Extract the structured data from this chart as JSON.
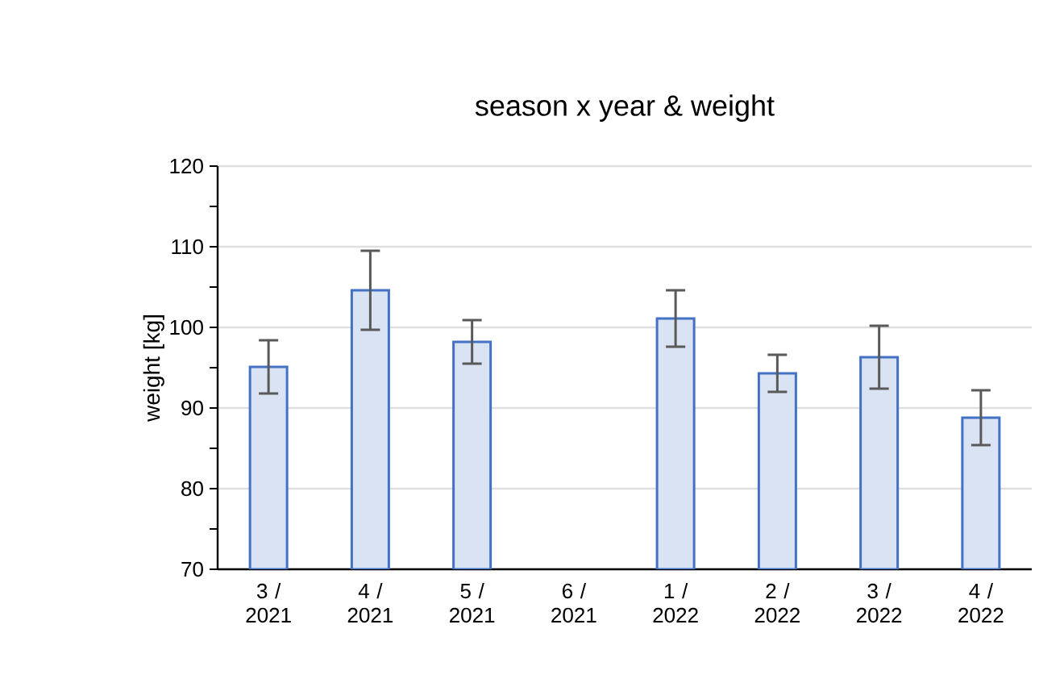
{
  "chart_data": {
    "type": "bar",
    "title": "season x year & weight",
    "ylabel": "weight [kg]",
    "categories": [
      "3 / 2021",
      "4 / 2021",
      "5 / 2021",
      "6 / 2021",
      "1 / 2022",
      "2 / 2022",
      "3 / 2022",
      "4 / 2022"
    ],
    "values": [
      95.1,
      104.6,
      98.2,
      null,
      101.1,
      94.3,
      96.3,
      88.8
    ],
    "errors": [
      3.3,
      4.9,
      2.7,
      null,
      3.5,
      2.3,
      3.9,
      3.4
    ],
    "color": "#dae3f3",
    "ylim": [
      70,
      120
    ],
    "yticks": [
      70,
      80,
      90,
      100,
      110,
      120
    ],
    "grid": "y"
  }
}
